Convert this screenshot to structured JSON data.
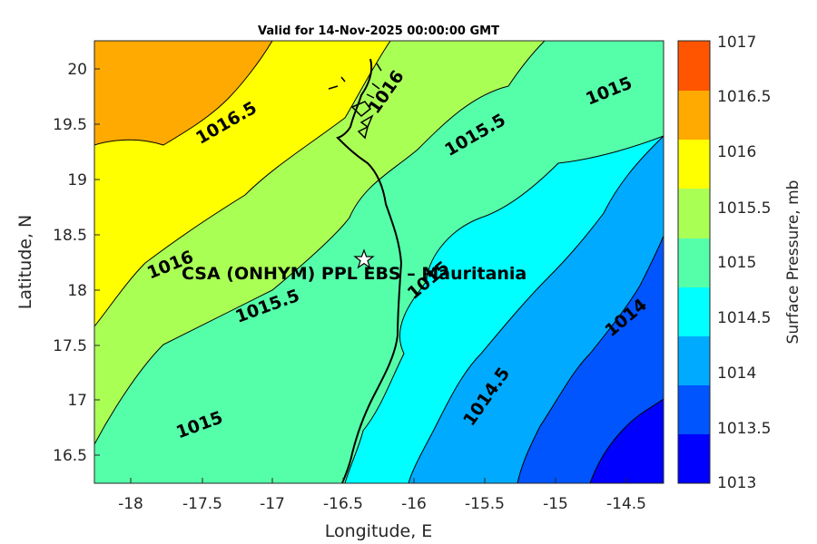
{
  "title": "Valid for 14-Nov-2025 00:00:00 GMT",
  "xlabel": "Longitude, E",
  "ylabel": "Latitude, N",
  "colorbar_label": "Surface Pressure, mb",
  "station_label": "CSA (ONHYM) PPL EBS – Mauritania",
  "station_marker": "star-icon",
  "x_ticks": [
    "-18",
    "-17.5",
    "-17",
    "-16.5",
    "-16",
    "-15.5",
    "-15",
    "-14.5"
  ],
  "y_ticks": [
    "20",
    "19.5",
    "19",
    "18.5",
    "18",
    "17.5",
    "17",
    "16.5"
  ],
  "colorbar_ticks": [
    "1017",
    "1016.5",
    "1016",
    "1015.5",
    "1015",
    "1014.5",
    "1014",
    "1013.5",
    "1013"
  ],
  "colorbar_colors": [
    "#ff5500",
    "#ffaa00",
    "#ffff00",
    "#aaff55",
    "#55ffaa",
    "#00ffff",
    "#00aaff",
    "#0055ff",
    "#0000ff"
  ],
  "contour_labels": [
    {
      "text": "1016.5"
    },
    {
      "text": "1016"
    },
    {
      "text": "1015.5"
    },
    {
      "text": "1015"
    },
    {
      "text": "1016"
    },
    {
      "text": "1015.5"
    },
    {
      "text": "1015"
    },
    {
      "text": "1015"
    },
    {
      "text": "1014.5"
    },
    {
      "text": "1014"
    }
  ],
  "chart_data": {
    "type": "heatmap",
    "title": "Valid for 14-Nov-2025 00:00:00 GMT",
    "xlabel": "Longitude, E",
    "ylabel": "Latitude, N",
    "xlim": [
      -18.25,
      -14.25
    ],
    "ylim": [
      16.25,
      20.25
    ],
    "colorbar": {
      "label": "Surface Pressure, mb",
      "range": [
        1013,
        1017
      ],
      "step": 0.5
    },
    "contour_levels": [
      1013.5,
      1014,
      1014.5,
      1015,
      1015.5,
      1016,
      1016.5
    ],
    "station": {
      "name": "CSA (ONHYM) PPL EBS – Mauritania",
      "lon": -16.35,
      "lat": 18.28
    }
  }
}
